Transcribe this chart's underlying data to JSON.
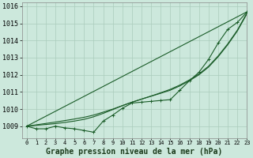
{
  "title": "Graphe pression niveau de la mer (hPa)",
  "bg_color": "#cce8dc",
  "grid_color": "#aaccbb",
  "line_color": "#1a5c28",
  "xlim": [
    -0.5,
    23
  ],
  "ylim": [
    1008.3,
    1016.2
  ],
  "yticks": [
    1009,
    1010,
    1011,
    1012,
    1013,
    1014,
    1015,
    1016
  ],
  "xticks": [
    0,
    1,
    2,
    3,
    4,
    5,
    6,
    7,
    8,
    9,
    10,
    11,
    12,
    13,
    14,
    15,
    16,
    17,
    18,
    19,
    20,
    21,
    22,
    23
  ],
  "series_measured": [
    1009.0,
    1008.85,
    1008.85,
    1009.0,
    1008.9,
    1008.85,
    1008.75,
    1008.65,
    1009.3,
    1009.65,
    1010.05,
    1010.35,
    1010.4,
    1010.45,
    1010.5,
    1010.55,
    1011.1,
    1011.65,
    1012.15,
    1012.9,
    1013.85,
    1014.65,
    1015.05,
    1015.65
  ],
  "series_straight": [
    1009.0,
    1009.29,
    1009.58,
    1009.87,
    1010.16,
    1010.45,
    1010.74,
    1011.03,
    1011.32,
    1011.61,
    1011.9,
    1012.19,
    1012.48,
    1012.77,
    1013.06,
    1013.35,
    1013.64,
    1013.93,
    1014.22,
    1014.51,
    1014.8,
    1015.09,
    1015.38,
    1015.67
  ],
  "series_smooth1": [
    1009.0,
    1009.05,
    1009.1,
    1009.15,
    1009.22,
    1009.3,
    1009.4,
    1009.55,
    1009.75,
    1009.97,
    1010.2,
    1010.4,
    1010.58,
    1010.75,
    1010.92,
    1011.1,
    1011.35,
    1011.65,
    1012.0,
    1012.45,
    1013.05,
    1013.75,
    1014.55,
    1015.55
  ],
  "series_smooth2": [
    1009.0,
    1009.08,
    1009.16,
    1009.24,
    1009.33,
    1009.42,
    1009.52,
    1009.65,
    1009.82,
    1010.0,
    1010.2,
    1010.4,
    1010.58,
    1010.76,
    1010.95,
    1011.15,
    1011.4,
    1011.7,
    1012.05,
    1012.5,
    1013.1,
    1013.8,
    1014.6,
    1015.6
  ],
  "xlabel_fontsize": 7.0,
  "ytick_fontsize": 6.0,
  "xtick_fontsize": 5.0
}
